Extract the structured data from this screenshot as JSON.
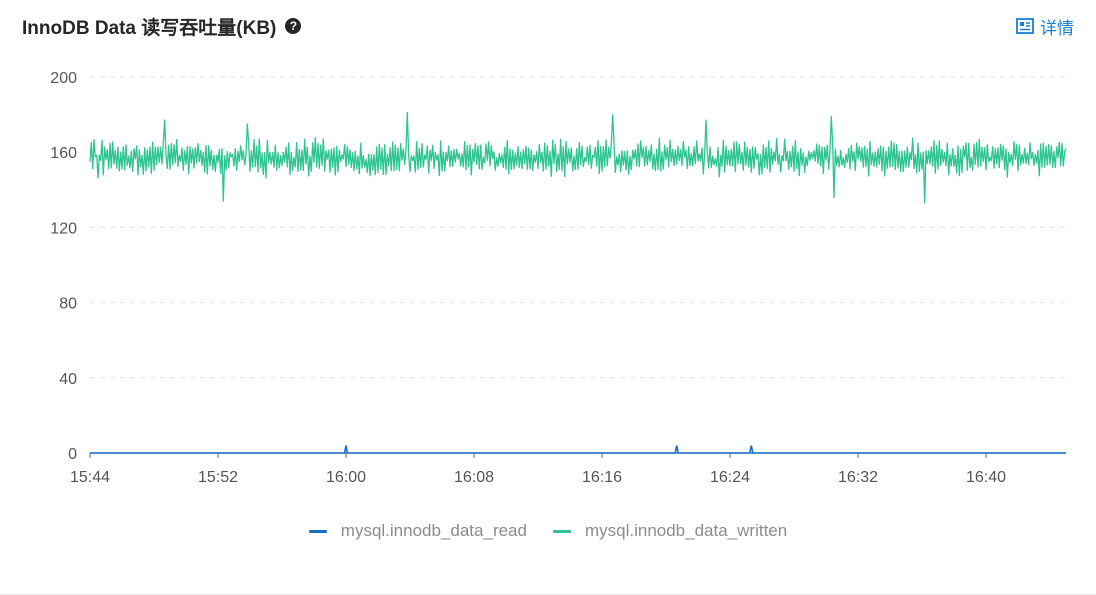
{
  "header": {
    "title": "InnoDB Data 读写吞吐量(KB)",
    "help_icon": "question-circle-icon",
    "details_label": "详情",
    "details_icon": "details-panel-icon"
  },
  "colors": {
    "read": "#1a6fc4",
    "written": "#2ec48f",
    "grid": "#e3e3e3",
    "axis": "#2b6fd0",
    "details": "#1a7fd4"
  },
  "chart_data": {
    "type": "line",
    "title": "InnoDB Data 读写吞吐量(KB)",
    "xlabel": "",
    "ylabel": "",
    "ylim": [
      0,
      200
    ],
    "yticks": [
      "0",
      "40",
      "80",
      "120",
      "160",
      "200"
    ],
    "xlim": [
      "15:44",
      "16:45"
    ],
    "xticks": [
      "15:44",
      "15:52",
      "16:00",
      "16:08",
      "16:16",
      "16:24",
      "16:32",
      "16:40"
    ],
    "grid": true,
    "legend_position": "bottom",
    "series": [
      {
        "name": "mysql.innodb_data_read",
        "baseline": 0,
        "spikes": [
          {
            "time": "16:00",
            "value": 4
          },
          {
            "time": "16:20:40",
            "value": 4
          },
          {
            "time": "16:25:20",
            "value": 4
          }
        ]
      },
      {
        "name": "mysql.innodb_data_written",
        "mean": 157,
        "min": 133,
        "max": 181,
        "notable_points": [
          {
            "time": "15:44",
            "value": 155
          },
          {
            "time": "15:48:40",
            "value": 177
          },
          {
            "time": "15:52:20",
            "value": 134
          },
          {
            "time": "15:53:50",
            "value": 175
          },
          {
            "time": "16:03:50",
            "value": 181
          },
          {
            "time": "16:16:40",
            "value": 180
          },
          {
            "time": "16:22:30",
            "value": 177
          },
          {
            "time": "16:30:20",
            "value": 179
          },
          {
            "time": "16:30:30",
            "value": 136
          },
          {
            "time": "16:36:10",
            "value": 133
          },
          {
            "time": "16:45",
            "value": 162
          }
        ]
      }
    ]
  }
}
